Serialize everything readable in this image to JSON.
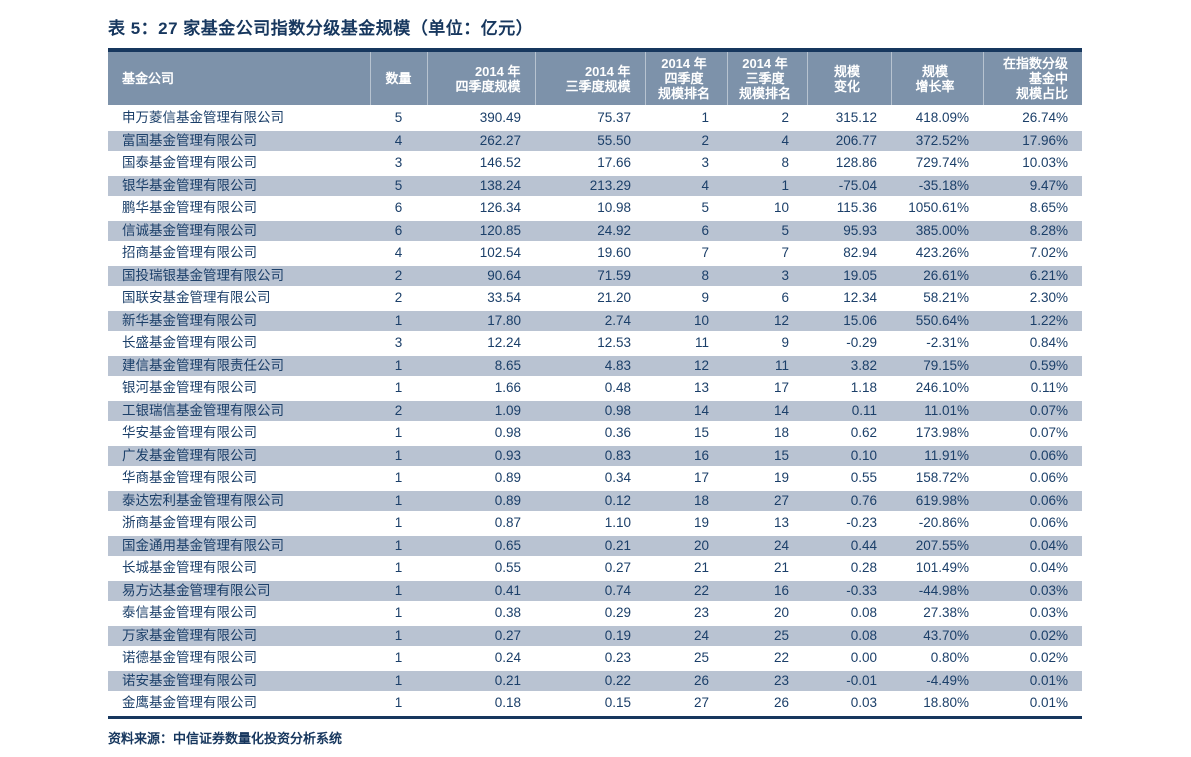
{
  "title": "表 5：27 家基金公司指数分级基金规模（单位：亿元）",
  "source_note": "资料来源：中信证券数量化投资分析系统",
  "colors": {
    "navy": "#17375E",
    "header_bg": "#7D92AA",
    "stripe_bg": "#B9C3D2",
    "text": "#1B3F69"
  },
  "table": {
    "headers": [
      {
        "key": "company",
        "lines": [
          "基金公司"
        ]
      },
      {
        "key": "count",
        "lines": [
          "数量"
        ]
      },
      {
        "key": "q4_scale",
        "lines": [
          "2014 年",
          "四季度规模"
        ]
      },
      {
        "key": "q3_scale",
        "lines": [
          "2014 年",
          "三季度规模"
        ]
      },
      {
        "key": "q4_rank",
        "lines": [
          "2014 年",
          "四季度",
          "规模排名"
        ]
      },
      {
        "key": "q3_rank",
        "lines": [
          "2014 年",
          "三季度",
          "规模排名"
        ]
      },
      {
        "key": "change",
        "lines": [
          "规模",
          "变化"
        ]
      },
      {
        "key": "growth",
        "lines": [
          "规模",
          "增长率"
        ]
      },
      {
        "key": "share",
        "lines": [
          "在指数分级",
          "基金中",
          "规模占比"
        ]
      }
    ],
    "rows": [
      [
        "申万菱信基金管理有限公司",
        "5",
        "390.49",
        "75.37",
        "1",
        "2",
        "315.12",
        "418.09%",
        "26.74%"
      ],
      [
        "富国基金管理有限公司",
        "4",
        "262.27",
        "55.50",
        "2",
        "4",
        "206.77",
        "372.52%",
        "17.96%"
      ],
      [
        "国泰基金管理有限公司",
        "3",
        "146.52",
        "17.66",
        "3",
        "8",
        "128.86",
        "729.74%",
        "10.03%"
      ],
      [
        "银华基金管理有限公司",
        "5",
        "138.24",
        "213.29",
        "4",
        "1",
        "-75.04",
        "-35.18%",
        "9.47%"
      ],
      [
        "鹏华基金管理有限公司",
        "6",
        "126.34",
        "10.98",
        "5",
        "10",
        "115.36",
        "1050.61%",
        "8.65%"
      ],
      [
        "信诚基金管理有限公司",
        "6",
        "120.85",
        "24.92",
        "6",
        "5",
        "95.93",
        "385.00%",
        "8.28%"
      ],
      [
        "招商基金管理有限公司",
        "4",
        "102.54",
        "19.60",
        "7",
        "7",
        "82.94",
        "423.26%",
        "7.02%"
      ],
      [
        "国投瑞银基金管理有限公司",
        "2",
        "90.64",
        "71.59",
        "8",
        "3",
        "19.05",
        "26.61%",
        "6.21%"
      ],
      [
        "国联安基金管理有限公司",
        "2",
        "33.54",
        "21.20",
        "9",
        "6",
        "12.34",
        "58.21%",
        "2.30%"
      ],
      [
        "新华基金管理有限公司",
        "1",
        "17.80",
        "2.74",
        "10",
        "12",
        "15.06",
        "550.64%",
        "1.22%"
      ],
      [
        "长盛基金管理有限公司",
        "3",
        "12.24",
        "12.53",
        "11",
        "9",
        "-0.29",
        "-2.31%",
        "0.84%"
      ],
      [
        "建信基金管理有限责任公司",
        "1",
        "8.65",
        "4.83",
        "12",
        "11",
        "3.82",
        "79.15%",
        "0.59%"
      ],
      [
        "银河基金管理有限公司",
        "1",
        "1.66",
        "0.48",
        "13",
        "17",
        "1.18",
        "246.10%",
        "0.11%"
      ],
      [
        "工银瑞信基金管理有限公司",
        "2",
        "1.09",
        "0.98",
        "14",
        "14",
        "0.11",
        "11.01%",
        "0.07%"
      ],
      [
        "华安基金管理有限公司",
        "1",
        "0.98",
        "0.36",
        "15",
        "18",
        "0.62",
        "173.98%",
        "0.07%"
      ],
      [
        "广发基金管理有限公司",
        "1",
        "0.93",
        "0.83",
        "16",
        "15",
        "0.10",
        "11.91%",
        "0.06%"
      ],
      [
        "华商基金管理有限公司",
        "1",
        "0.89",
        "0.34",
        "17",
        "19",
        "0.55",
        "158.72%",
        "0.06%"
      ],
      [
        "泰达宏利基金管理有限公司",
        "1",
        "0.89",
        "0.12",
        "18",
        "27",
        "0.76",
        "619.98%",
        "0.06%"
      ],
      [
        "浙商基金管理有限公司",
        "1",
        "0.87",
        "1.10",
        "19",
        "13",
        "-0.23",
        "-20.86%",
        "0.06%"
      ],
      [
        "国金通用基金管理有限公司",
        "1",
        "0.65",
        "0.21",
        "20",
        "24",
        "0.44",
        "207.55%",
        "0.04%"
      ],
      [
        "长城基金管理有限公司",
        "1",
        "0.55",
        "0.27",
        "21",
        "21",
        "0.28",
        "101.49%",
        "0.04%"
      ],
      [
        "易方达基金管理有限公司",
        "1",
        "0.41",
        "0.74",
        "22",
        "16",
        "-0.33",
        "-44.98%",
        "0.03%"
      ],
      [
        "泰信基金管理有限公司",
        "1",
        "0.38",
        "0.29",
        "23",
        "20",
        "0.08",
        "27.38%",
        "0.03%"
      ],
      [
        "万家基金管理有限公司",
        "1",
        "0.27",
        "0.19",
        "24",
        "25",
        "0.08",
        "43.70%",
        "0.02%"
      ],
      [
        "诺德基金管理有限公司",
        "1",
        "0.24",
        "0.23",
        "25",
        "22",
        "0.00",
        "0.80%",
        "0.02%"
      ],
      [
        "诺安基金管理有限公司",
        "1",
        "0.21",
        "0.22",
        "26",
        "23",
        "-0.01",
        "-4.49%",
        "0.01%"
      ],
      [
        "金鹰基金管理有限公司",
        "1",
        "0.18",
        "0.15",
        "27",
        "26",
        "0.03",
        "18.80%",
        "0.01%"
      ]
    ]
  }
}
